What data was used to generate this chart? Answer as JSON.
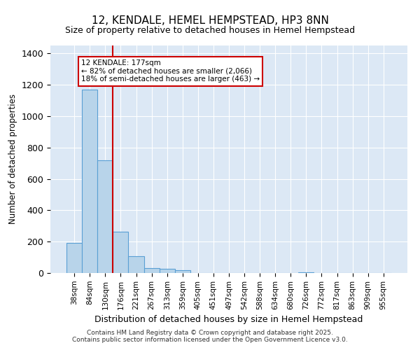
{
  "title": "12, KENDALE, HEMEL HEMPSTEAD, HP3 8NN",
  "subtitle": "Size of property relative to detached houses in Hemel Hempstead",
  "xlabel": "Distribution of detached houses by size in Hemel Hempstead",
  "ylabel": "Number of detached properties",
  "categories": [
    "38sqm",
    "84sqm",
    "130sqm",
    "176sqm",
    "221sqm",
    "267sqm",
    "313sqm",
    "359sqm",
    "405sqm",
    "451sqm",
    "497sqm",
    "542sqm",
    "588sqm",
    "634sqm",
    "680sqm",
    "726sqm",
    "772sqm",
    "817sqm",
    "863sqm",
    "909sqm",
    "955sqm"
  ],
  "values": [
    190,
    1170,
    720,
    265,
    105,
    30,
    25,
    20,
    0,
    0,
    0,
    0,
    0,
    0,
    0,
    5,
    0,
    0,
    0,
    0,
    0
  ],
  "bar_color": "#b8d4ea",
  "bar_edge_color": "#5a9fd4",
  "background_color": "#dce8f5",
  "grid_color": "#ffffff",
  "red_line_index": 2.5,
  "annotation_line1": "12 KENDALE: 177sqm",
  "annotation_line2": "← 82% of detached houses are smaller (2,066)",
  "annotation_line3": "18% of semi-detached houses are larger (463) →",
  "annotation_box_color": "#ffffff",
  "annotation_box_edge": "#cc0000",
  "footer_line1": "Contains HM Land Registry data © Crown copyright and database right 2025.",
  "footer_line2": "Contains public sector information licensed under the Open Government Licence v3.0.",
  "ylim": [
    0,
    1450
  ],
  "yticks": [
    0,
    200,
    400,
    600,
    800,
    1000,
    1200,
    1400
  ]
}
